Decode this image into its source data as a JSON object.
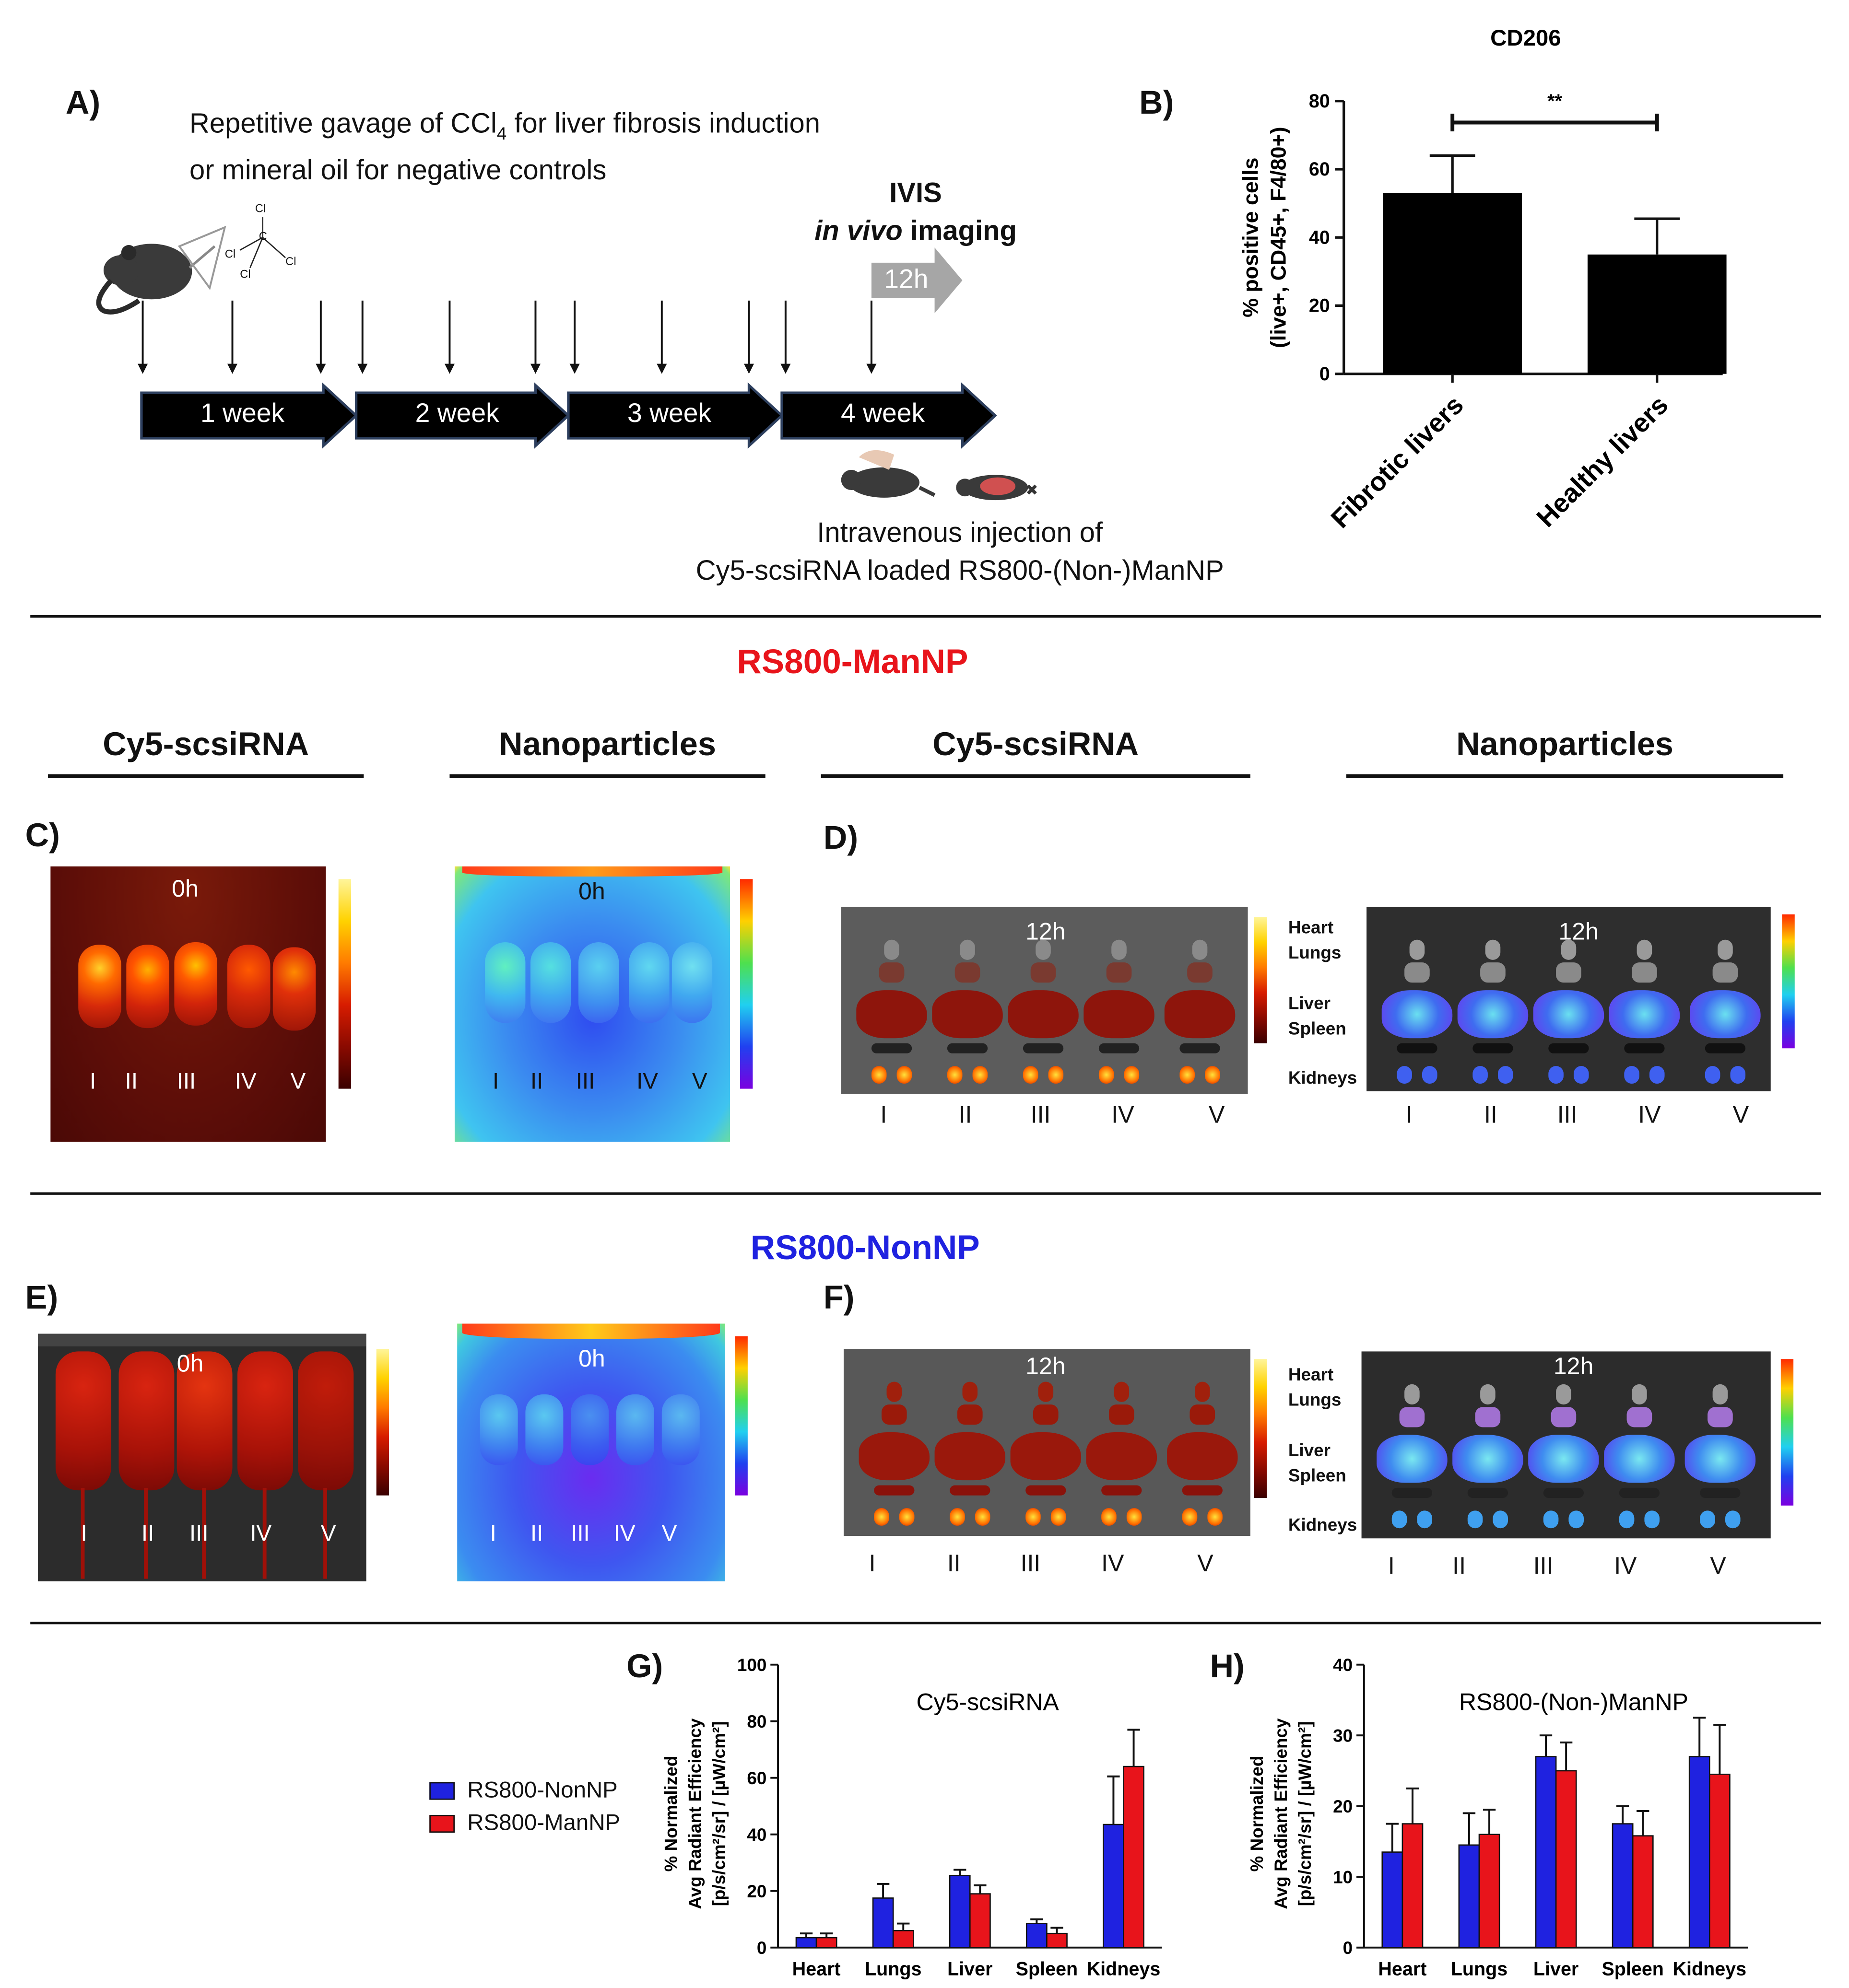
{
  "panel_labels": {
    "A": "A)",
    "B": "B)",
    "C": "C)",
    "D": "D)",
    "E": "E)",
    "F": "F)",
    "G": "G)",
    "H": "H)"
  },
  "panel_a": {
    "description_line1_pre": "Repetitive gavage of CCl",
    "description_line1_sub": "4",
    "description_line1_post": " for liver fibrosis induction",
    "description_line2": "or mineral oil for negative controls",
    "ivis_line1": "IVIS",
    "ivis_line2_italic": "in vivo",
    "ivis_line2_rest": " imaging",
    "arrow_12h": "12h",
    "timeline": [
      "1 week",
      "2 week",
      "3 week",
      "4 week"
    ],
    "injection_line1": "Intravenous injection of",
    "injection_line2": "Cy5-scsiRNA loaded RS800-(Non-)ManNP",
    "molecule_labels": [
      "Cl",
      "C",
      "Cl",
      "Cl",
      "Cl"
    ]
  },
  "sections": {
    "man_title": "RS800-ManNP",
    "man_color": "#e8141b",
    "non_title": "RS800-NonNP",
    "non_color": "#1f22e0",
    "column_heads": [
      "Cy5-scsiRNA",
      "Nanoparticles",
      "Cy5-scsiRNA",
      "Nanoparticles"
    ]
  },
  "imaging": {
    "time_0h": "0h",
    "time_12h": "12h",
    "mice": [
      "I",
      "II",
      "III",
      "IV",
      "V"
    ],
    "organs": [
      "Heart",
      "Lungs",
      "Liver",
      "Spleen",
      "Kidneys"
    ]
  },
  "legend": {
    "non": "RS800-NonNP",
    "man": "RS800-ManNP",
    "non_color": "#1f22e0",
    "man_color": "#e8141b"
  },
  "chart_data": [
    {
      "type": "bar",
      "title": "CD206",
      "ylabel_line1": "% positive cells",
      "ylabel_line2": "(live+, CD45+, F4/80+)",
      "categories": [
        "Fibrotic livers",
        "Healthy livers"
      ],
      "values": [
        53,
        35
      ],
      "errors": [
        11,
        10.5
      ],
      "ylim": [
        0,
        80
      ],
      "yticks": [
        0,
        20,
        40,
        60,
        80
      ],
      "significance": "**",
      "bar_color": "#000000"
    },
    {
      "type": "bar",
      "title": "Cy5-scsiRNA",
      "ylabel_line1": "% Normalized",
      "ylabel_line2": "Avg Radiant Efficiency",
      "ylabel_line3": "[p/s/cm²/sr] / [µW/cm²]",
      "categories": [
        "Heart",
        "Lungs",
        "Liver",
        "Spleen",
        "Kidneys"
      ],
      "ylim": [
        0,
        100
      ],
      "yticks": [
        0,
        20,
        40,
        60,
        80,
        100
      ],
      "series": [
        {
          "name": "RS800-NonNP",
          "values": [
            3.5,
            17.5,
            25.5,
            8.5,
            43.5
          ],
          "errors": [
            1.5,
            5,
            2,
            1.5,
            17
          ]
        },
        {
          "name": "RS800-ManNP",
          "values": [
            3.5,
            6,
            19,
            5,
            64
          ],
          "errors": [
            1.5,
            2.5,
            3,
            2,
            13
          ]
        }
      ]
    },
    {
      "type": "bar",
      "title": "RS800-(Non-)ManNP",
      "ylabel_line1": "% Normalized",
      "ylabel_line2": "Avg Radiant Efficiency",
      "ylabel_line3": "[p/s/cm²/sr] / [µW/cm²]",
      "categories": [
        "Heart",
        "Lungs",
        "Liver",
        "Spleen",
        "Kidneys"
      ],
      "ylim": [
        0,
        40
      ],
      "yticks": [
        0,
        10,
        20,
        30,
        40
      ],
      "series": [
        {
          "name": "RS800-NonNP",
          "values": [
            13.5,
            14.5,
            27,
            17.5,
            27
          ],
          "errors": [
            4,
            4.5,
            3,
            2.5,
            5.5
          ]
        },
        {
          "name": "RS800-ManNP",
          "values": [
            17.5,
            16,
            25,
            15.8,
            24.5
          ],
          "errors": [
            5,
            3.5,
            4,
            3.5,
            7
          ]
        }
      ]
    }
  ]
}
